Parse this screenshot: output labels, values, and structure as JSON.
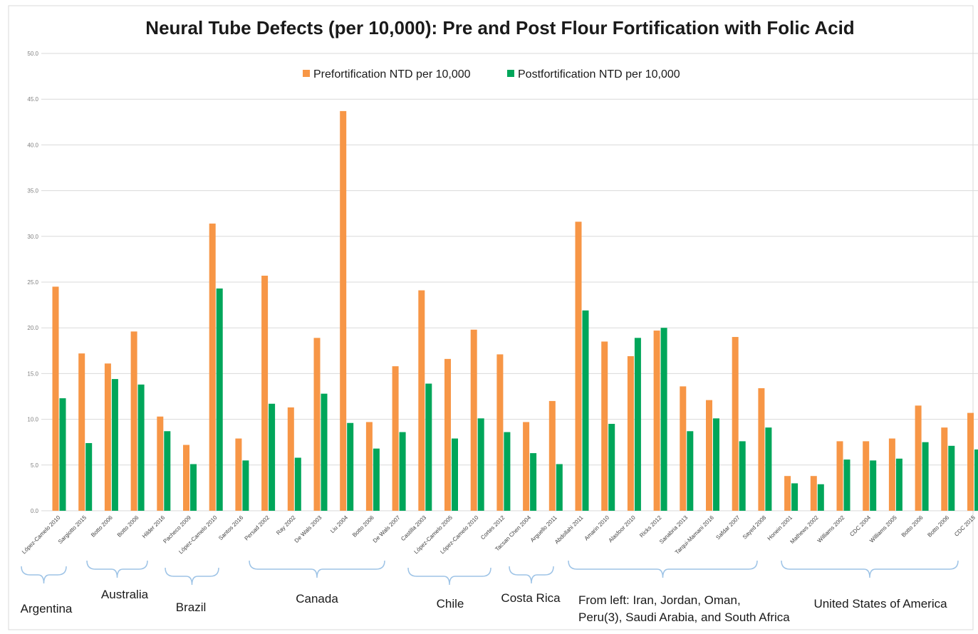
{
  "colors": {
    "pre": "#f79646",
    "post": "#00a65a",
    "grid": "#d9d9d9",
    "bracket": "#9dc3e6",
    "text": "#1a1a1a",
    "tick": "#7f7f7f"
  },
  "chart_data": {
    "type": "bar",
    "title": "Neural Tube Defects (per 10,000): Pre and Post Flour Fortification with Folic Acid",
    "xlabel": "",
    "ylabel": "",
    "ylim": [
      0,
      50
    ],
    "yticks": [
      "0.0",
      "5.0",
      "10.0",
      "15.0",
      "20.0",
      "25.0",
      "30.0",
      "35.0",
      "40.0",
      "45.0",
      "50.0"
    ],
    "grid": true,
    "legend_position": "top-center",
    "categories": [
      "López-Camelo 2010",
      "Sargiotto 2015",
      "Botto 2006",
      "Botto 2006",
      "Hilder 2016",
      "Pacheco 2009",
      "López-Camelo 2010",
      "Santos 2016",
      "Persad 2002",
      "Ray 2002",
      "De Wals 2003",
      "Liu 2004",
      "Botto 2006",
      "De Wals 2007",
      "Castilla 2003",
      "López-Camelo 2005",
      "López-Camelo 2010",
      "Cortes 2012",
      "Tacsan Chen 2004",
      "Arguello 2011",
      "Abdollahi 2011",
      "Amarin 2010",
      "Alasfoor 2010",
      "Ricks 2012",
      "Sanabria 2013",
      "Tarqui-Mamani 2016",
      "Safdar 2007",
      "Sayed 2008",
      "Honein 2001",
      "Mathews 2002",
      "Williams 2002",
      "CDC 2004",
      "Williams 2005",
      "Botto 2006",
      "Botto 2006",
      "CDC 2015"
    ],
    "series": [
      {
        "name": "Prefortification NTD per 10,000",
        "values": [
          24.5,
          17.2,
          16.1,
          19.6,
          10.3,
          7.2,
          31.4,
          7.9,
          25.7,
          11.3,
          18.9,
          43.7,
          9.7,
          15.8,
          24.1,
          16.6,
          19.8,
          17.1,
          9.7,
          12.0,
          31.6,
          18.5,
          16.9,
          19.7,
          13.6,
          12.1,
          19.0,
          13.4,
          3.8,
          3.8,
          7.6,
          7.6,
          7.9,
          11.5,
          9.1,
          10.7
        ]
      },
      {
        "name": "Postfortification NTD per 10,000",
        "values": [
          12.3,
          7.4,
          14.4,
          13.8,
          8.7,
          5.1,
          24.3,
          5.5,
          11.7,
          5.8,
          12.8,
          9.6,
          6.8,
          8.6,
          13.9,
          7.9,
          10.1,
          8.6,
          6.3,
          5.1,
          21.9,
          9.5,
          18.9,
          20.0,
          8.7,
          10.1,
          7.6,
          9.1,
          3.0,
          2.9,
          5.6,
          5.5,
          5.7,
          7.5,
          7.1,
          6.7
        ]
      }
    ],
    "groups": [
      {
        "label": "Argentina",
        "start": 0,
        "end": 1
      },
      {
        "label": "Australia",
        "start": 2,
        "end": 4
      },
      {
        "label": "Brazil",
        "start": 5,
        "end": 7
      },
      {
        "label": "Canada",
        "start": 8,
        "end": 13
      },
      {
        "label": "Chile",
        "start": 14,
        "end": 17
      },
      {
        "label": "Costa Rica",
        "start": 18,
        "end": 19
      },
      {
        "label": "From left: Iran, Jordan, Oman,\nPeru(3), Saudi Arabia, and South Africa",
        "start": 20,
        "end": 27
      },
      {
        "label": "United States of America",
        "start": 28,
        "end": 35
      }
    ]
  }
}
